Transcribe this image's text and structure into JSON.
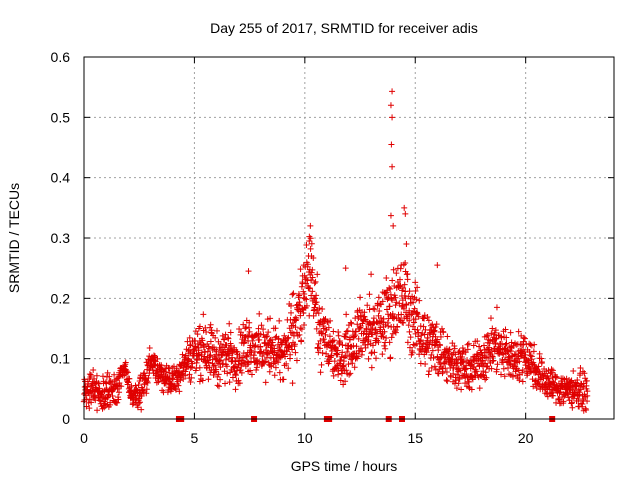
{
  "chart_data": {
    "type": "scatter",
    "title": "Day 255 of 2017, SRMTID for receiver adis",
    "xlabel": "GPS time / hours",
    "ylabel": "SRMTID / TECUs",
    "xlim": [
      0,
      24
    ],
    "ylim": [
      0,
      0.6
    ],
    "x_ticks": [
      "0",
      "5",
      "10",
      "15",
      "20"
    ],
    "y_ticks": [
      "0",
      "0.1",
      "0.2",
      "0.3",
      "0.4",
      "0.5",
      "0.6"
    ],
    "grid": true,
    "marker": "+",
    "color": "#e00000",
    "x_range_of_data": [
      0,
      22.8
    ],
    "envelope": [
      [
        0.0,
        0.045,
        0.02
      ],
      [
        0.5,
        0.05,
        0.025
      ],
      [
        1.0,
        0.04,
        0.02
      ],
      [
        1.5,
        0.045,
        0.02
      ],
      [
        1.8,
        0.09,
        0.01
      ],
      [
        2.2,
        0.035,
        0.015
      ],
      [
        2.6,
        0.05,
        0.02
      ],
      [
        3.0,
        0.09,
        0.015
      ],
      [
        3.5,
        0.075,
        0.015
      ],
      [
        4.0,
        0.06,
        0.02
      ],
      [
        4.5,
        0.09,
        0.02
      ],
      [
        5.0,
        0.11,
        0.03
      ],
      [
        5.5,
        0.12,
        0.035
      ],
      [
        6.0,
        0.1,
        0.03
      ],
      [
        6.5,
        0.11,
        0.03
      ],
      [
        7.0,
        0.1,
        0.03
      ],
      [
        7.5,
        0.13,
        0.035
      ],
      [
        8.0,
        0.11,
        0.035
      ],
      [
        8.5,
        0.12,
        0.03
      ],
      [
        9.0,
        0.1,
        0.035
      ],
      [
        9.5,
        0.15,
        0.045
      ],
      [
        10.0,
        0.2,
        0.05
      ],
      [
        10.3,
        0.25,
        0.04
      ],
      [
        10.6,
        0.15,
        0.04
      ],
      [
        11.0,
        0.13,
        0.035
      ],
      [
        11.5,
        0.1,
        0.03
      ],
      [
        12.0,
        0.12,
        0.035
      ],
      [
        12.5,
        0.15,
        0.035
      ],
      [
        13.0,
        0.14,
        0.035
      ],
      [
        13.5,
        0.16,
        0.04
      ],
      [
        14.0,
        0.19,
        0.05
      ],
      [
        14.5,
        0.2,
        0.05
      ],
      [
        15.0,
        0.16,
        0.04
      ],
      [
        15.5,
        0.13,
        0.035
      ],
      [
        16.0,
        0.12,
        0.035
      ],
      [
        16.5,
        0.1,
        0.03
      ],
      [
        17.0,
        0.09,
        0.025
      ],
      [
        17.5,
        0.08,
        0.025
      ],
      [
        18.0,
        0.1,
        0.03
      ],
      [
        18.5,
        0.12,
        0.03
      ],
      [
        19.0,
        0.11,
        0.03
      ],
      [
        19.5,
        0.1,
        0.025
      ],
      [
        20.0,
        0.11,
        0.03
      ],
      [
        20.5,
        0.08,
        0.025
      ],
      [
        21.0,
        0.06,
        0.02
      ],
      [
        21.5,
        0.05,
        0.02
      ],
      [
        22.0,
        0.05,
        0.02
      ],
      [
        22.8,
        0.045,
        0.02
      ]
    ],
    "notable_points": [
      [
        13.95,
        0.543
      ],
      [
        13.9,
        0.52
      ],
      [
        13.95,
        0.5
      ],
      [
        13.92,
        0.455
      ],
      [
        13.95,
        0.418
      ],
      [
        13.9,
        0.337
      ],
      [
        14.0,
        0.32
      ],
      [
        14.5,
        0.35
      ],
      [
        14.55,
        0.34
      ],
      [
        10.25,
        0.32
      ],
      [
        10.2,
        0.295
      ],
      [
        10.3,
        0.27
      ],
      [
        7.45,
        0.245
      ],
      [
        11.85,
        0.25
      ],
      [
        9.95,
        0.255
      ],
      [
        13.0,
        0.24
      ],
      [
        14.6,
        0.29
      ],
      [
        16.0,
        0.255
      ],
      [
        18.7,
        0.185
      ]
    ],
    "baseline_markers": [
      4.3,
      4.4,
      7.7,
      11.0,
      11.1,
      13.8,
      14.4,
      21.2
    ]
  }
}
